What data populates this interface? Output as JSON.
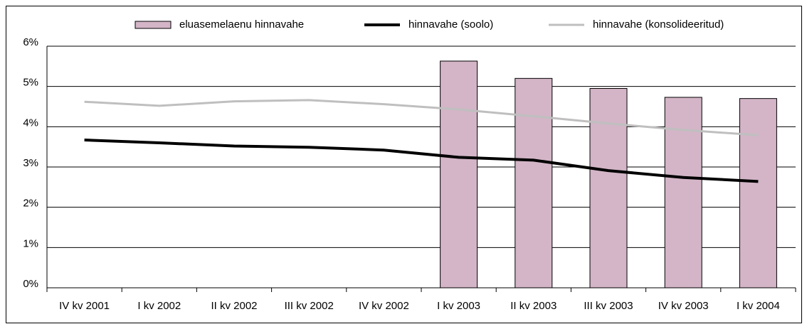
{
  "chart_data": {
    "type": "bar",
    "categories": [
      "IV kv 2001",
      "I kv 2002",
      "II kv 2002",
      "III kv 2002",
      "IV kv 2002",
      "I kv 2003",
      "II kv 2003",
      "III kv 2003",
      "IV kv 2003",
      "I kv 2004"
    ],
    "series": [
      {
        "name": "eluasemelaenu hinnavahe",
        "type": "bar",
        "color": "#d3b5c7",
        "values": [
          null,
          null,
          null,
          null,
          null,
          5.63,
          5.2,
          4.95,
          4.73,
          4.7
        ]
      },
      {
        "name": "hinnavahe (soolo)",
        "type": "line",
        "color": "#000000",
        "values": [
          3.67,
          3.6,
          3.52,
          3.49,
          3.42,
          3.24,
          3.17,
          2.91,
          2.74,
          2.64
        ]
      },
      {
        "name": "hinnavahe (konsolideeritud)",
        "type": "line",
        "color": "#bfbfbf",
        "values": [
          4.62,
          4.52,
          4.63,
          4.66,
          4.56,
          4.43,
          4.26,
          4.08,
          3.92,
          3.79
        ]
      }
    ],
    "ylim": [
      0,
      6
    ],
    "yticks": [
      {
        "value": 0,
        "label": "0%"
      },
      {
        "value": 1,
        "label": "1%"
      },
      {
        "value": 2,
        "label": "2%"
      },
      {
        "value": 3,
        "label": "3%"
      },
      {
        "value": 4,
        "label": "4%"
      },
      {
        "value": 5,
        "label": "5%"
      },
      {
        "value": 6,
        "label": "6%"
      }
    ],
    "grid": true,
    "legend": "top"
  }
}
